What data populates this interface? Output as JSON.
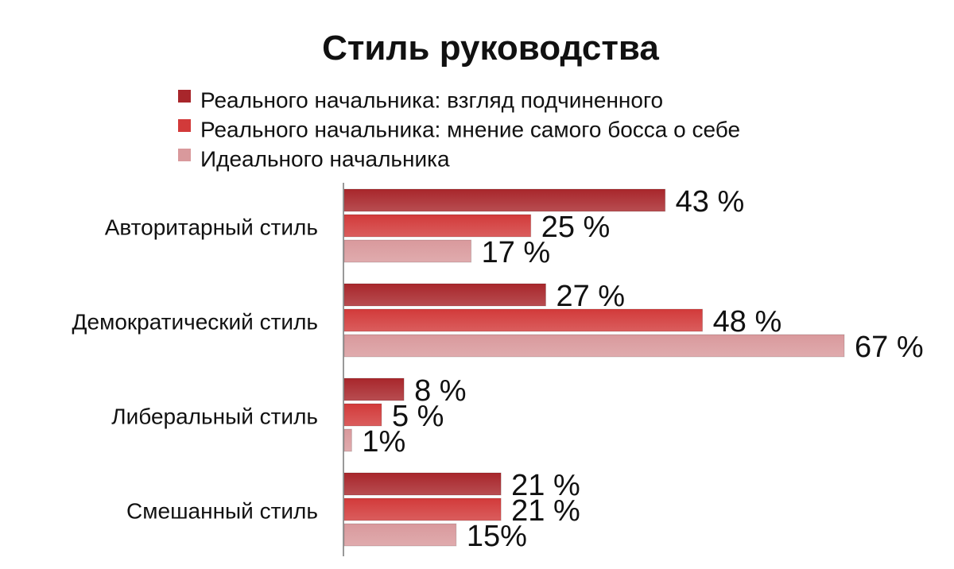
{
  "chart_data": {
    "type": "bar",
    "orientation": "horizontal",
    "title": "Стиль руководства",
    "categories": [
      "Авторитарный стиль",
      "Демократический стиль",
      "Либеральный стиль",
      "Смешанный стиль"
    ],
    "series": [
      {
        "name": "Реального начальника: взгляд подчиненного",
        "values": [
          43,
          27,
          8,
          21
        ],
        "labels": [
          "43 %",
          "27 %",
          "8 %",
          "21 %"
        ],
        "color": "#a8262b"
      },
      {
        "name": "Реального начальника: мнение самого босса о себе",
        "values": [
          25,
          48,
          5,
          21
        ],
        "labels": [
          "25 %",
          "48 %",
          "5 %",
          "21 %"
        ],
        "color": "#d23a3a"
      },
      {
        "name": "Идеального начальника",
        "values": [
          17,
          67,
          1,
          15
        ],
        "labels": [
          "17 %",
          "67 %",
          "1%",
          "15%"
        ],
        "color": "#d9999c"
      }
    ],
    "xlim": [
      0,
      67
    ],
    "legend": "top",
    "grid": false
  }
}
